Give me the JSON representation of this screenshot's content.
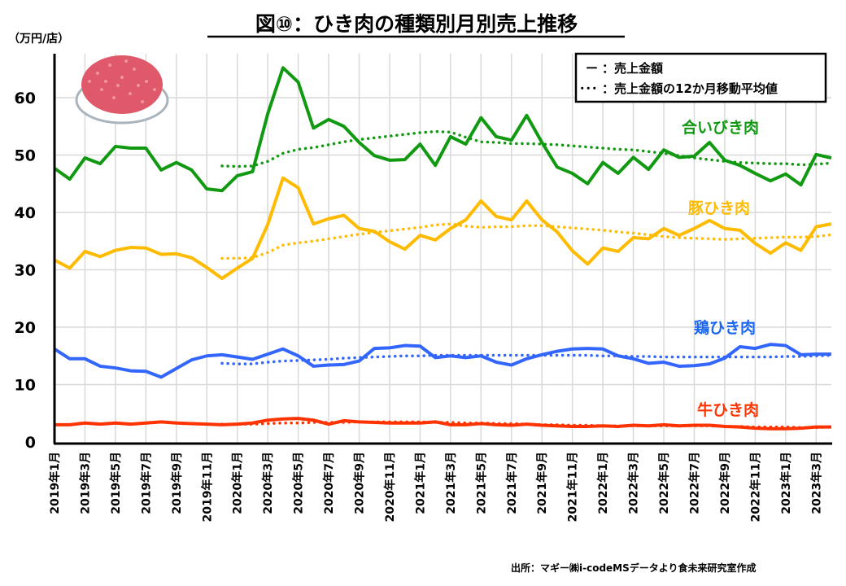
{
  "chart_data": {
    "type": "line",
    "title": "図⑩：ひき肉の種類別月別売上推移",
    "ylabel": "（万円/店）",
    "xlabel": "",
    "ylim": [
      0,
      67
    ],
    "yticks": [
      0,
      10,
      20,
      30,
      40,
      50,
      60
    ],
    "grid": true,
    "x": [
      "2019年1月",
      "2019年2月",
      "2019年3月",
      "2019年4月",
      "2019年5月",
      "2019年6月",
      "2019年7月",
      "2019年8月",
      "2019年9月",
      "2019年10月",
      "2019年11月",
      "2019年12月",
      "2020年1月",
      "2020年2月",
      "2020年3月",
      "2020年4月",
      "2020年5月",
      "2020年6月",
      "2020年7月",
      "2020年8月",
      "2020年9月",
      "2020年10月",
      "2020年11月",
      "2020年12月",
      "2021年1月",
      "2021年2月",
      "2021年3月",
      "2021年4月",
      "2021年5月",
      "2021年6月",
      "2021年7月",
      "2021年8月",
      "2021年9月",
      "2021年10月",
      "2021年11月",
      "2021年12月",
      "2022年1月",
      "2022年2月",
      "2022年3月",
      "2022年4月",
      "2022年5月",
      "2022年6月",
      "2022年7月",
      "2022年8月",
      "2022年9月",
      "2022年10月",
      "2022年11月",
      "2022年12月",
      "2023年1月",
      "2023年2月",
      "2023年3月",
      "2023年4月"
    ],
    "xtick_labels": [
      "2019年1月",
      "2019年3月",
      "2019年5月",
      "2019年7月",
      "2019年9月",
      "2019年11月",
      "2020年1月",
      "2020年3月",
      "2020年5月",
      "2020年7月",
      "2020年9月",
      "2020年11月",
      "2021年1月",
      "2021年3月",
      "2021年5月",
      "2021年7月",
      "2021年9月",
      "2021年11月",
      "2022年1月",
      "2022年3月",
      "2022年5月",
      "2022年7月",
      "2022年9月",
      "2022年11月",
      "2023年1月",
      "2023年3月"
    ],
    "series": [
      {
        "name": "合いびき肉",
        "color": "#119911",
        "values": [
          47.7,
          45.8,
          49.5,
          48.5,
          51.5,
          51.2,
          51.2,
          47.4,
          48.7,
          47.4,
          44.1,
          43.8,
          46.4,
          47.1,
          57.2,
          65.2,
          62.7,
          54.7,
          56.2,
          55.0,
          52.2,
          49.9,
          49.1,
          49.2,
          51.9,
          48.2,
          53.2,
          51.9,
          56.5,
          53.2,
          52.6,
          56.9,
          52.2,
          47.9,
          46.8,
          45.0,
          48.7,
          46.8,
          49.6,
          47.5,
          50.9,
          49.6,
          49.8,
          52.2,
          49.1,
          48.2,
          46.8,
          45.5,
          46.7,
          44.8,
          50.1,
          49.5
        ],
        "moving_average": [
          null,
          null,
          null,
          null,
          null,
          null,
          null,
          null,
          null,
          null,
          null,
          48.1,
          48.0,
          48.1,
          48.9,
          50.3,
          51.0,
          51.3,
          51.8,
          52.3,
          52.7,
          53.0,
          53.3,
          53.6,
          53.9,
          54.1,
          54.0,
          53.1,
          52.3,
          52.2,
          52.0,
          52.0,
          51.9,
          51.8,
          51.6,
          51.4,
          51.2,
          51.0,
          50.9,
          50.6,
          50.3,
          49.9,
          49.5,
          49.2,
          48.9,
          48.7,
          48.6,
          48.5,
          48.5,
          48.3,
          48.4,
          48.6
        ]
      },
      {
        "name": "豚ひき肉",
        "color": "#ffbb00",
        "values": [
          31.7,
          30.3,
          33.2,
          32.3,
          33.4,
          33.9,
          33.8,
          32.7,
          32.8,
          32.1,
          30.4,
          28.5,
          30.3,
          32.0,
          37.9,
          46.0,
          44.3,
          38.0,
          38.9,
          39.5,
          37.2,
          36.7,
          34.9,
          33.6,
          36.0,
          35.2,
          37.2,
          38.7,
          42.0,
          39.3,
          38.7,
          42.0,
          38.7,
          36.6,
          33.3,
          31.0,
          33.8,
          33.2,
          35.6,
          35.4,
          37.2,
          36.0,
          37.2,
          38.6,
          37.2,
          36.9,
          34.6,
          32.9,
          34.7,
          33.4,
          37.5,
          38.0
        ],
        "moving_average": [
          null,
          null,
          null,
          null,
          null,
          null,
          null,
          null,
          null,
          null,
          null,
          32.0,
          32.0,
          32.1,
          33.0,
          34.3,
          34.7,
          35.0,
          35.4,
          35.8,
          36.2,
          36.5,
          36.8,
          37.1,
          37.4,
          37.8,
          38.0,
          37.6,
          37.4,
          37.5,
          37.5,
          37.7,
          37.7,
          37.5,
          37.3,
          37.1,
          36.9,
          36.6,
          36.4,
          36.1,
          35.8,
          35.6,
          35.5,
          35.4,
          35.3,
          35.4,
          35.5,
          35.6,
          35.7,
          35.7,
          35.8,
          36.1
        ]
      },
      {
        "name": "鶏ひき肉",
        "color": "#3366ff",
        "values": [
          16.2,
          14.5,
          14.5,
          13.2,
          12.9,
          12.4,
          12.3,
          11.3,
          12.8,
          14.3,
          15.0,
          15.2,
          14.8,
          14.4,
          15.3,
          16.2,
          15.0,
          13.2,
          13.4,
          13.5,
          14.1,
          16.3,
          16.4,
          16.8,
          16.7,
          14.7,
          15.0,
          14.7,
          15.0,
          13.9,
          13.4,
          14.5,
          15.2,
          15.8,
          16.2,
          16.3,
          16.2,
          15.0,
          14.5,
          13.7,
          13.9,
          13.2,
          13.3,
          13.6,
          14.6,
          16.6,
          16.3,
          17.0,
          16.8,
          15.2,
          15.3,
          15.3
        ],
        "moving_average": [
          null,
          null,
          null,
          null,
          null,
          null,
          null,
          null,
          null,
          null,
          null,
          13.7,
          13.6,
          13.6,
          13.9,
          14.1,
          14.2,
          14.3,
          14.4,
          14.6,
          14.7,
          14.8,
          14.9,
          15.0,
          15.0,
          15.1,
          15.1,
          15.1,
          15.1,
          15.1,
          15.1,
          15.1,
          15.1,
          15.1,
          15.1,
          15.1,
          15.0,
          15.0,
          14.9,
          14.9,
          14.8,
          14.8,
          14.8,
          14.8,
          14.8,
          14.8,
          14.8,
          14.8,
          14.9,
          14.9,
          15.0,
          15.1
        ]
      },
      {
        "name": "牛ひき肉",
        "color": "#ff3300",
        "values": [
          3.0,
          3.0,
          3.3,
          3.1,
          3.3,
          3.1,
          3.3,
          3.5,
          3.3,
          3.2,
          3.1,
          3.0,
          3.1,
          3.3,
          3.8,
          4.0,
          4.1,
          3.8,
          3.1,
          3.7,
          3.5,
          3.4,
          3.3,
          3.3,
          3.3,
          3.5,
          3.0,
          3.0,
          3.2,
          3.0,
          2.9,
          3.1,
          2.9,
          2.8,
          2.7,
          2.7,
          2.8,
          2.7,
          2.9,
          2.8,
          3.0,
          2.8,
          2.9,
          2.9,
          2.7,
          2.6,
          2.4,
          2.3,
          2.3,
          2.4,
          2.6,
          2.6
        ],
        "moving_average": [
          null,
          null,
          null,
          null,
          null,
          null,
          null,
          null,
          null,
          null,
          null,
          3.1,
          3.1,
          3.1,
          3.2,
          3.3,
          3.3,
          3.4,
          3.4,
          3.4,
          3.5,
          3.5,
          3.5,
          3.5,
          3.5,
          3.4,
          3.4,
          3.3,
          3.3,
          3.2,
          3.2,
          3.1,
          3.0,
          3.0,
          2.9,
          2.9,
          2.8,
          2.8,
          2.8,
          2.8,
          2.8,
          2.8,
          2.8,
          2.8,
          2.7,
          2.7,
          2.6,
          2.6,
          2.6,
          2.5,
          2.5,
          2.6
        ]
      }
    ],
    "legend": {
      "position": "top-right",
      "entries": [
        {
          "symbol": "ー",
          "label": "：売上金額"
        },
        {
          "symbol": "･･･",
          "label": "：売上金額の12か月移動平均値"
        }
      ]
    },
    "source": "出所：マギー㈱i-codeMSデータより食未来研究室作成",
    "illustration": "ground-meat-on-plate"
  }
}
